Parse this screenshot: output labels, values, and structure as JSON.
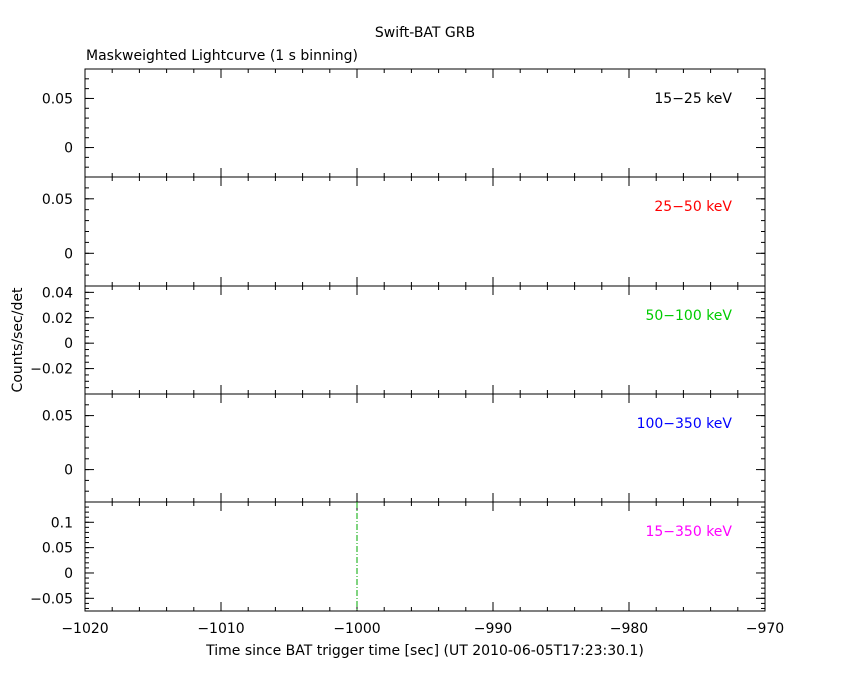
{
  "chart_data": {
    "type": "line",
    "title": "Swift-BAT GRB",
    "subtitle": "Maskweighted Lightcurve (1 s binning)",
    "xlabel": "Time since BAT trigger time [sec] (UT 2010-06-05T17:23:30.1)",
    "ylabel": "Counts/sec/det",
    "xlim": [
      -1020,
      -970
    ],
    "x_ticks": [
      -1020,
      -1010,
      -1000,
      -990,
      -980,
      -970
    ],
    "x_tick_labels": [
      "−1020",
      "−1010",
      "−1000",
      "−990",
      "−980",
      "−970"
    ],
    "panels": [
      {
        "name": "15−25 keV",
        "color": "#000000",
        "ylim": [
          -0.03,
          0.08
        ],
        "y_ticks": [
          0,
          0.05
        ],
        "y_tick_labels": [
          "0",
          "0.05"
        ],
        "values": []
      },
      {
        "name": "25−50 keV",
        "color": "#ff0000",
        "ylim": [
          -0.03,
          0.07
        ],
        "y_ticks": [
          0,
          0.05
        ],
        "y_tick_labels": [
          "0",
          "0.05"
        ],
        "values": []
      },
      {
        "name": "50−100 keV",
        "color": "#00cc00",
        "ylim": [
          -0.04,
          0.045
        ],
        "y_ticks": [
          -0.02,
          0,
          0.02,
          0.04
        ],
        "y_tick_labels": [
          "−0.02",
          "0",
          "0.02",
          "0.04"
        ],
        "values": []
      },
      {
        "name": "100−350 keV",
        "color": "#0000ff",
        "ylim": [
          -0.03,
          0.07
        ],
        "y_ticks": [
          0,
          0.05
        ],
        "y_tick_labels": [
          "0",
          "0.05"
        ],
        "values": []
      },
      {
        "name": "15−350 keV",
        "color": "#ff00ff",
        "ylim": [
          -0.075,
          0.14
        ],
        "y_ticks": [
          -0.05,
          0,
          0.05,
          0.1
        ],
        "y_tick_labels": [
          "−0.05",
          "0",
          "0.05",
          "0.1"
        ],
        "values": []
      }
    ],
    "annotations": [
      {
        "type": "vertical-dash-dot-line",
        "x": -1000,
        "color": "#00aa00",
        "panel": "15−350 keV"
      }
    ],
    "grid": false,
    "legend": "panel labels, top-right of each panel"
  }
}
